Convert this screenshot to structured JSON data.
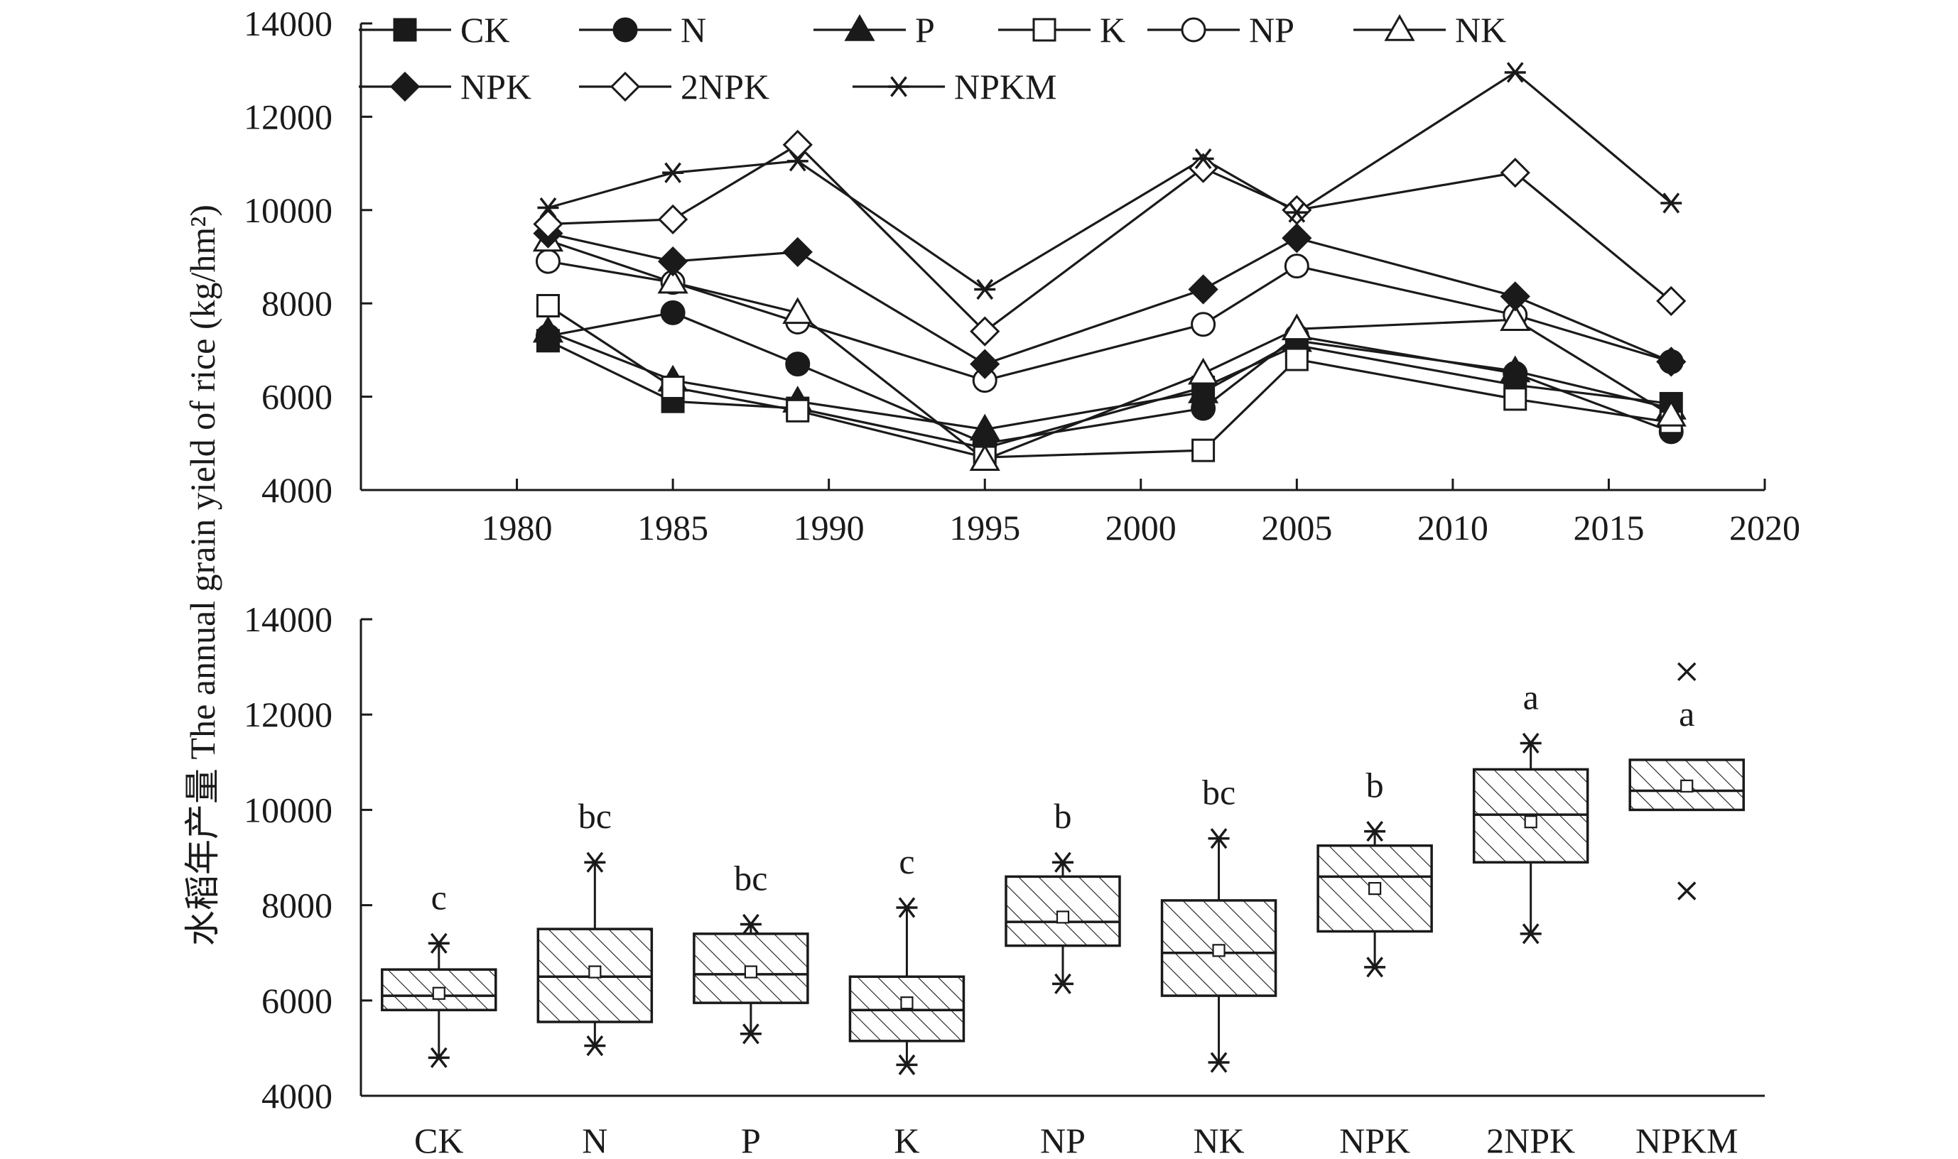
{
  "chart_data": [
    {
      "type": "line",
      "ylabel": "水稻年产量 The annual grain yield of rice (kg/hm²)",
      "xlim": [
        1975,
        2020
      ],
      "ylim": [
        4000,
        14000
      ],
      "xticks": [
        1980,
        1985,
        1990,
        1995,
        2000,
        2005,
        2010,
        2015,
        2020
      ],
      "yticks": [
        4000,
        6000,
        8000,
        10000,
        12000,
        14000
      ],
      "x": [
        1981,
        1985,
        1989,
        1995,
        2002,
        2005,
        2012,
        2017
      ],
      "series": [
        {
          "name": "CK",
          "marker": "square",
          "values": [
            7200,
            5900,
            5750,
            4900,
            6200,
            7100,
            6250,
            5850
          ]
        },
        {
          "name": "N",
          "marker": "circle",
          "values": [
            7300,
            7800,
            6700,
            5000,
            5750,
            7300,
            6500,
            5250
          ]
        },
        {
          "name": "P",
          "marker": "triangle",
          "values": [
            7400,
            6350,
            5900,
            5300,
            6100,
            7200,
            6550,
            5750
          ]
        },
        {
          "name": "K",
          "marker": "square-open",
          "values": [
            7950,
            6200,
            5700,
            4700,
            4850,
            6800,
            5950,
            5450
          ]
        },
        {
          "name": "NP",
          "marker": "circle-open",
          "values": [
            8900,
            8450,
            7600,
            6350,
            7550,
            8800,
            7750,
            6750
          ]
        },
        {
          "name": "NK",
          "marker": "triangle-open",
          "values": [
            9350,
            8450,
            7800,
            4650,
            6500,
            7450,
            7650,
            5600
          ]
        },
        {
          "name": "NPK",
          "marker": "diamond",
          "values": [
            9500,
            8900,
            9100,
            6700,
            8300,
            9400,
            8150,
            6750
          ]
        },
        {
          "name": "2NPK",
          "marker": "diamond-open",
          "values": [
            9700,
            9800,
            11400,
            7400,
            10900,
            10000,
            10800,
            8050
          ]
        },
        {
          "name": "NPKM",
          "marker": "asterisk",
          "values": [
            10050,
            10800,
            11050,
            8300,
            11100,
            9950,
            12950,
            10150
          ]
        }
      ],
      "legend": "top"
    },
    {
      "type": "box",
      "ylim": [
        4000,
        14000
      ],
      "yticks": [
        4000,
        6000,
        8000,
        10000,
        12000,
        14000
      ],
      "categories": [
        "CK",
        "N",
        "P",
        "K",
        "NP",
        "NK",
        "NPK",
        "2NPK",
        "NPKM"
      ],
      "boxes": [
        {
          "name": "CK",
          "min": 4800,
          "q1": 5800,
          "median": 6100,
          "q3": 6650,
          "max": 7200,
          "mean": 6150,
          "label": "c",
          "outliers": []
        },
        {
          "name": "N",
          "min": 5050,
          "q1": 5550,
          "median": 6500,
          "q3": 7500,
          "max": 8900,
          "mean": 6600,
          "label": "bc",
          "outliers": []
        },
        {
          "name": "P",
          "min": 5300,
          "q1": 5950,
          "median": 6550,
          "q3": 7400,
          "max": 7600,
          "mean": 6600,
          "label": "bc",
          "outliers": []
        },
        {
          "name": "K",
          "min": 4650,
          "q1": 5150,
          "median": 5800,
          "q3": 6500,
          "max": 7950,
          "mean": 5950,
          "label": "c",
          "outliers": []
        },
        {
          "name": "NP",
          "min": 6350,
          "q1": 7150,
          "median": 7650,
          "q3": 8600,
          "max": 8900,
          "mean": 7750,
          "label": "b",
          "outliers": []
        },
        {
          "name": "NK",
          "min": 4700,
          "q1": 6100,
          "median": 7000,
          "q3": 8100,
          "max": 9400,
          "mean": 7050,
          "label": "bc",
          "outliers": []
        },
        {
          "name": "NPK",
          "min": 6700,
          "q1": 7450,
          "median": 8600,
          "q3": 9250,
          "max": 9550,
          "mean": 8350,
          "label": "b",
          "outliers": []
        },
        {
          "name": "2NPK",
          "min": 7400,
          "q1": 8900,
          "median": 9900,
          "q3": 10850,
          "max": 11400,
          "mean": 9750,
          "label": "a",
          "outliers": []
        },
        {
          "name": "NPKM",
          "min": null,
          "q1": 10000,
          "median": 10400,
          "q3": 11050,
          "max": null,
          "mean": 10500,
          "label": "a",
          "outliers": [
            12900,
            8300
          ]
        }
      ]
    }
  ]
}
